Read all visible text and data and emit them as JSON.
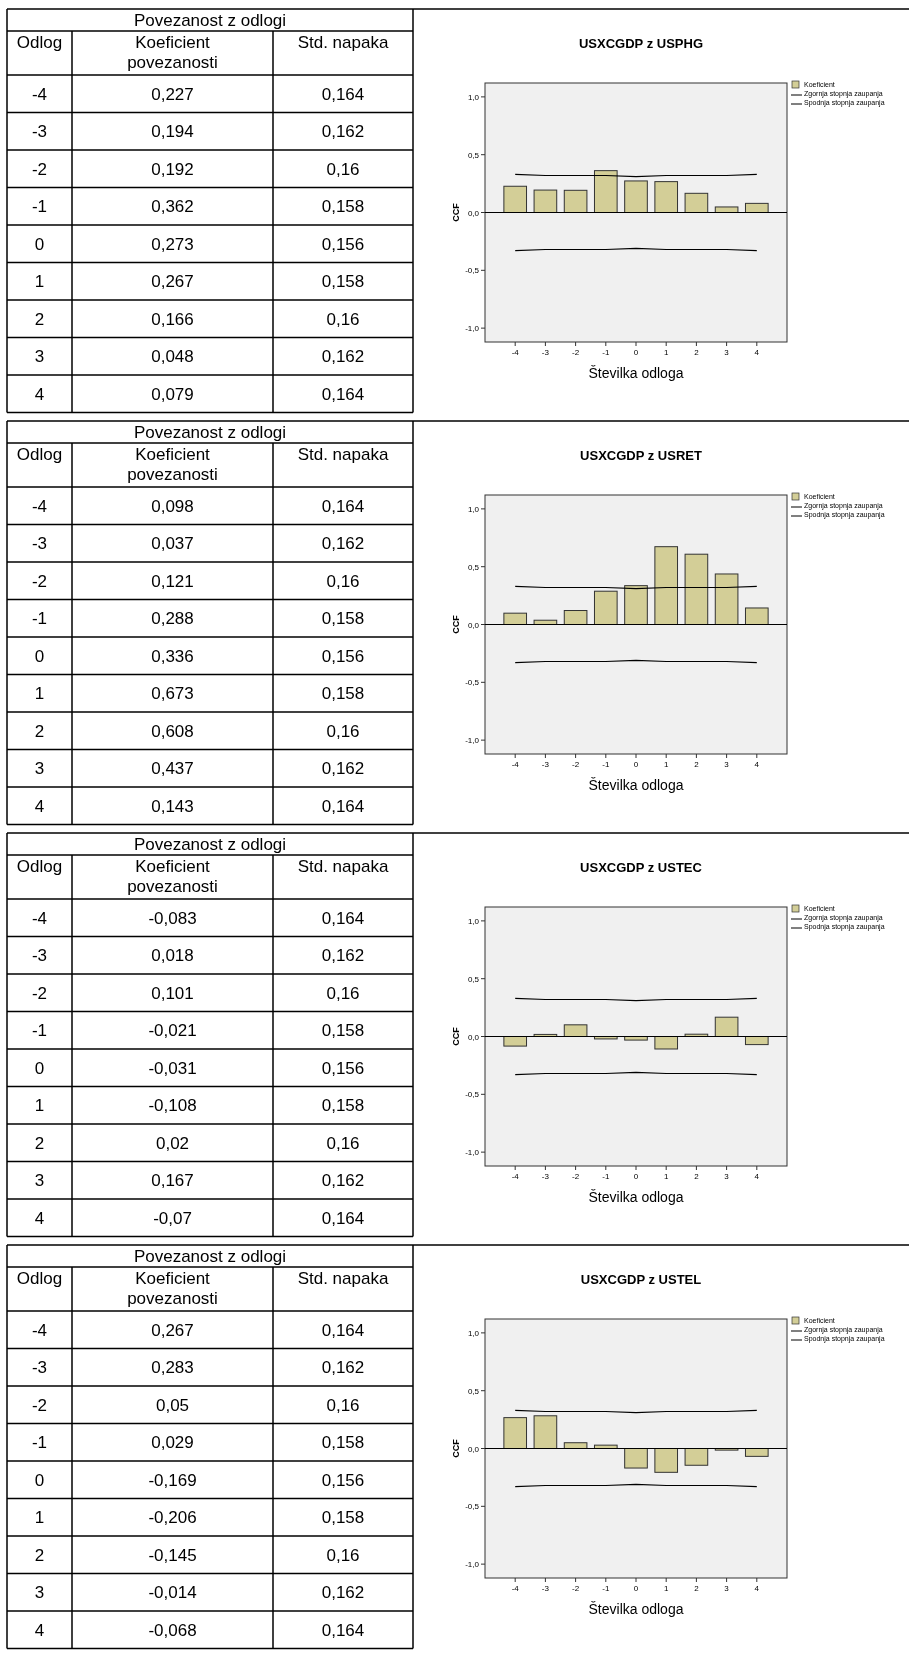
{
  "chart_data": [
    {
      "type": "bar",
      "title": "USXCGDP z USPHG",
      "xlabel": "Številka odloga",
      "ylabel": "CCF",
      "categories": [
        "-4",
        "-3",
        "-2",
        "-1",
        "0",
        "1",
        "2",
        "3",
        "4"
      ],
      "ylim": [
        -1.12,
        1.12
      ],
      "yticks": [
        {
          "value": -1,
          "label": "-1,0"
        },
        {
          "value": -0.5,
          "label": "-0,5"
        },
        {
          "value": 0,
          "label": "0,0"
        },
        {
          "value": 0.5,
          "label": "0,5"
        },
        {
          "value": 1,
          "label": "1,0"
        }
      ],
      "legend": "right",
      "annotations": [
        "Povezanost z odlogi",
        "Odlog",
        "Koeficient povezanosti",
        "Std. napaka",
        "0,227",
        "0,164",
        "0,194",
        "0,162",
        "0,192",
        "0,16",
        "0,362",
        "0,158",
        "0,273",
        "0,156",
        "0,267",
        "0,158",
        "0,166",
        "0,16",
        "0,048",
        "0,162",
        "0,079",
        "0,164"
      ],
      "series": [
        {
          "name": "Koeficient",
          "color": "#d3ce97",
          "values": [
            0.227,
            0.194,
            0.192,
            0.362,
            0.273,
            0.267,
            0.166,
            0.048,
            0.079
          ]
        },
        {
          "name": "Zgornja stopnja zaupanja",
          "type": "line",
          "color": "#000000",
          "values": [
            0.33,
            0.32,
            0.32,
            0.32,
            0.31,
            0.32,
            0.32,
            0.32,
            0.33
          ]
        },
        {
          "name": "Spodnja stopnja zaupanja",
          "type": "line",
          "color": "#000000",
          "values": [
            -0.33,
            -0.32,
            -0.32,
            -0.32,
            -0.31,
            -0.32,
            -0.32,
            -0.32,
            -0.33
          ]
        }
      ]
    },
    {
      "type": "bar",
      "title": "USXCGDP z USRET",
      "xlabel": "Številka odloga",
      "ylabel": "CCF",
      "categories": [
        "-4",
        "-3",
        "-2",
        "-1",
        "0",
        "1",
        "2",
        "3",
        "4"
      ],
      "ylim": [
        -1.12,
        1.12
      ],
      "yticks": [
        {
          "value": -1,
          "label": "-1,0"
        },
        {
          "value": -0.5,
          "label": "-0,5"
        },
        {
          "value": 0,
          "label": "0,0"
        },
        {
          "value": 0.5,
          "label": "0,5"
        },
        {
          "value": 1,
          "label": "1,0"
        }
      ],
      "legend": "right",
      "annotations": [
        "Povezanost z odlogi",
        "Odlog",
        "Koeficient povezanosti",
        "Std. napaka",
        "0,098",
        "0,164",
        "0,037",
        "0,162",
        "0,121",
        "0,16",
        "0,288",
        "0,158",
        "0,336",
        "0,156",
        "0,673",
        "0,158",
        "0,608",
        "0,16",
        "0,437",
        "0,162",
        "0,143",
        "0,164"
      ],
      "series": [
        {
          "name": "Koeficient",
          "color": "#d3ce97",
          "values": [
            0.098,
            0.037,
            0.121,
            0.288,
            0.336,
            0.673,
            0.608,
            0.437,
            0.143
          ]
        },
        {
          "name": "Zgornja stopnja zaupanja",
          "type": "line",
          "color": "#000000",
          "values": [
            0.33,
            0.32,
            0.32,
            0.32,
            0.31,
            0.32,
            0.32,
            0.32,
            0.33
          ]
        },
        {
          "name": "Spodnja stopnja zaupanja",
          "type": "line",
          "color": "#000000",
          "values": [
            -0.33,
            -0.32,
            -0.32,
            -0.32,
            -0.31,
            -0.32,
            -0.32,
            -0.32,
            -0.33
          ]
        }
      ]
    },
    {
      "type": "bar",
      "title": "USXCGDP z USTEC",
      "xlabel": "Številka odloga",
      "ylabel": "CCF",
      "categories": [
        "-4",
        "-3",
        "-2",
        "-1",
        "0",
        "1",
        "2",
        "3",
        "4"
      ],
      "ylim": [
        -1.12,
        1.12
      ],
      "yticks": [
        {
          "value": -1,
          "label": "-1,0"
        },
        {
          "value": -0.5,
          "label": "-0,5"
        },
        {
          "value": 0,
          "label": "0,0"
        },
        {
          "value": 0.5,
          "label": "0,5"
        },
        {
          "value": 1,
          "label": "1,0"
        }
      ],
      "legend": "right",
      "annotations": [
        "Povezanost z odlogi",
        "Odlog",
        "Koeficient povezanosti",
        "Std. napaka",
        "-0,083",
        "0,164",
        "0,018",
        "0,162",
        "0,101",
        "0,16",
        "-0,021",
        "0,158",
        "-0,031",
        "0,156",
        "-0,108",
        "0,158",
        "0,02",
        "0,16",
        "0,167",
        "0,162",
        "-0,07",
        "0,164"
      ],
      "series": [
        {
          "name": "Koeficient",
          "color": "#d3ce97",
          "values": [
            -0.083,
            0.018,
            0.101,
            -0.021,
            -0.031,
            -0.108,
            0.02,
            0.167,
            -0.07
          ]
        },
        {
          "name": "Zgornja stopnja zaupanja",
          "type": "line",
          "color": "#000000",
          "values": [
            0.33,
            0.32,
            0.32,
            0.32,
            0.31,
            0.32,
            0.32,
            0.32,
            0.33
          ]
        },
        {
          "name": "Spodnja stopnja zaupanja",
          "type": "line",
          "color": "#000000",
          "values": [
            -0.33,
            -0.32,
            -0.32,
            -0.32,
            -0.31,
            -0.32,
            -0.32,
            -0.32,
            -0.33
          ]
        }
      ]
    },
    {
      "type": "bar",
      "title": "USXCGDP z USTEL",
      "xlabel": "Številka odloga",
      "ylabel": "CCF",
      "categories": [
        "-4",
        "-3",
        "-2",
        "-1",
        "0",
        "1",
        "2",
        "3",
        "4"
      ],
      "ylim": [
        -1.12,
        1.12
      ],
      "yticks": [
        {
          "value": -1,
          "label": "-1,0"
        },
        {
          "value": -0.5,
          "label": "-0,5"
        },
        {
          "value": 0,
          "label": "0,0"
        },
        {
          "value": 0.5,
          "label": "0,5"
        },
        {
          "value": 1,
          "label": "1,0"
        }
      ],
      "legend": "right",
      "annotations": [
        "Povezanost z odlogi",
        "Odlog",
        "Koeficient povezanosti",
        "Std. napaka",
        "0,267",
        "0,164",
        "0,283",
        "0,162",
        "0,05",
        "0,16",
        "0,029",
        "0,158",
        "-0,169",
        "0,156",
        "-0,206",
        "0,158",
        "-0,145",
        "0,16",
        "-0,014",
        "0,162",
        "-0,068",
        "0,164"
      ],
      "series": [
        {
          "name": "Koeficient",
          "color": "#d3ce97",
          "values": [
            0.267,
            0.283,
            0.05,
            0.029,
            -0.169,
            -0.206,
            -0.145,
            -0.014,
            -0.068
          ]
        },
        {
          "name": "Zgornja stopnja zaupanja",
          "type": "line",
          "color": "#000000",
          "values": [
            0.33,
            0.32,
            0.32,
            0.32,
            0.31,
            0.32,
            0.32,
            0.32,
            0.33
          ]
        },
        {
          "name": "Spodnja stopnja zaupanja",
          "type": "line",
          "color": "#000000",
          "values": [
            -0.33,
            -0.32,
            -0.32,
            -0.32,
            -0.31,
            -0.32,
            -0.32,
            -0.32,
            -0.33
          ]
        }
      ]
    }
  ]
}
